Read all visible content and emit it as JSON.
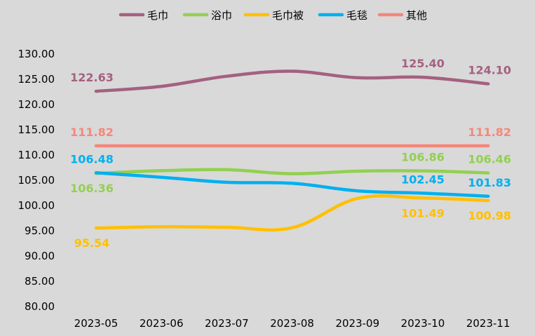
{
  "chart_data": {
    "type": "line",
    "categories": [
      "2023-05",
      "2023-06",
      "2023-07",
      "2023-08",
      "2023-09",
      "2023-10",
      "2023-11"
    ],
    "ylim": [
      80,
      130
    ],
    "y_ticks": [
      "80.00",
      "85.00",
      "90.00",
      "95.00",
      "100.00",
      "105.00",
      "110.00",
      "115.00",
      "120.00",
      "125.00",
      "130.00"
    ],
    "grid": false,
    "legend_position": "top",
    "series": [
      {
        "name": "毛巾",
        "color": "#a4617f",
        "values": [
          122.63,
          123.6,
          125.6,
          126.6,
          125.3,
          125.4,
          124.1
        ],
        "labels": [
          {
            "index": 0,
            "text": "122.63",
            "place": "above"
          },
          {
            "index": 5,
            "text": "125.40",
            "place": "above"
          },
          {
            "index": 6,
            "text": "124.10",
            "place": "above"
          }
        ]
      },
      {
        "name": "浴巾",
        "color": "#92d050",
        "values": [
          106.36,
          106.9,
          107.1,
          106.3,
          106.8,
          106.86,
          106.46
        ],
        "labels": [
          {
            "index": 0,
            "text": "106.36",
            "place": "below"
          },
          {
            "index": 5,
            "text": "106.86",
            "place": "above"
          },
          {
            "index": 6,
            "text": "106.46",
            "place": "above"
          }
        ]
      },
      {
        "name": "毛巾被",
        "color": "#ffc000",
        "values": [
          95.54,
          95.8,
          95.7,
          95.6,
          101.4,
          101.49,
          100.98
        ],
        "labels": [
          {
            "index": 0,
            "text": "95.54",
            "place": "below"
          },
          {
            "index": 5,
            "text": "101.49",
            "place": "below"
          },
          {
            "index": 6,
            "text": "100.98",
            "place": "below"
          }
        ]
      },
      {
        "name": "毛毯",
        "color": "#00b0f0",
        "values": [
          106.48,
          105.6,
          104.6,
          104.4,
          102.9,
          102.45,
          101.83
        ],
        "labels": [
          {
            "index": 0,
            "text": "106.48",
            "place": "above"
          },
          {
            "index": 5,
            "text": "102.45",
            "place": "above"
          },
          {
            "index": 6,
            "text": "101.83",
            "place": "above"
          }
        ]
      },
      {
        "name": "其他",
        "color": "#f4877b",
        "values": [
          111.82,
          111.82,
          111.82,
          111.82,
          111.82,
          111.82,
          111.82
        ],
        "labels": [
          {
            "index": 0,
            "text": "111.82",
            "place": "above"
          },
          {
            "index": 6,
            "text": "111.82",
            "place": "above"
          }
        ]
      }
    ]
  }
}
